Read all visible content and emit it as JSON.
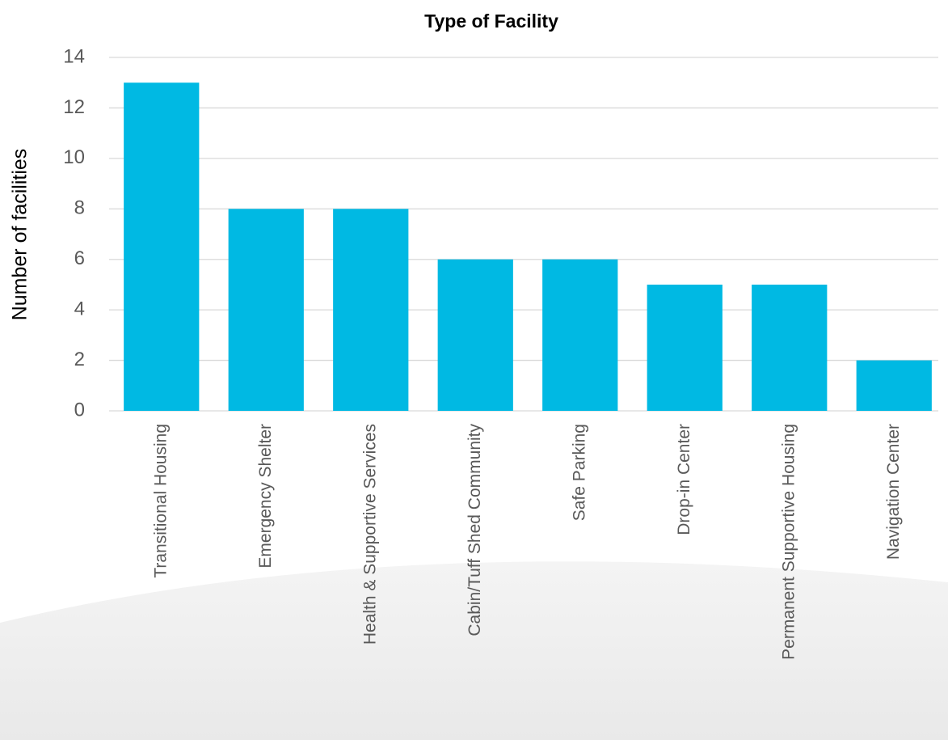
{
  "chart_data": {
    "type": "bar",
    "title": "Type of Facility",
    "y_label": "Number of facilities",
    "categories": [
      "Transitional Housing",
      "Emergency Shelter",
      "Health & Supportive Services",
      "Cabin/Tuff Shed Community",
      "Safe Parking",
      "Drop-in Center",
      "Permanent Supportive Housing",
      "Navigation Center"
    ],
    "values": [
      13,
      8,
      8,
      6,
      6,
      5,
      5,
      2
    ],
    "color": "#00b9e3",
    "ylim": [
      0,
      14
    ],
    "yticks": [
      0,
      2,
      4,
      6,
      8,
      10,
      12,
      14
    ],
    "grid": true
  }
}
